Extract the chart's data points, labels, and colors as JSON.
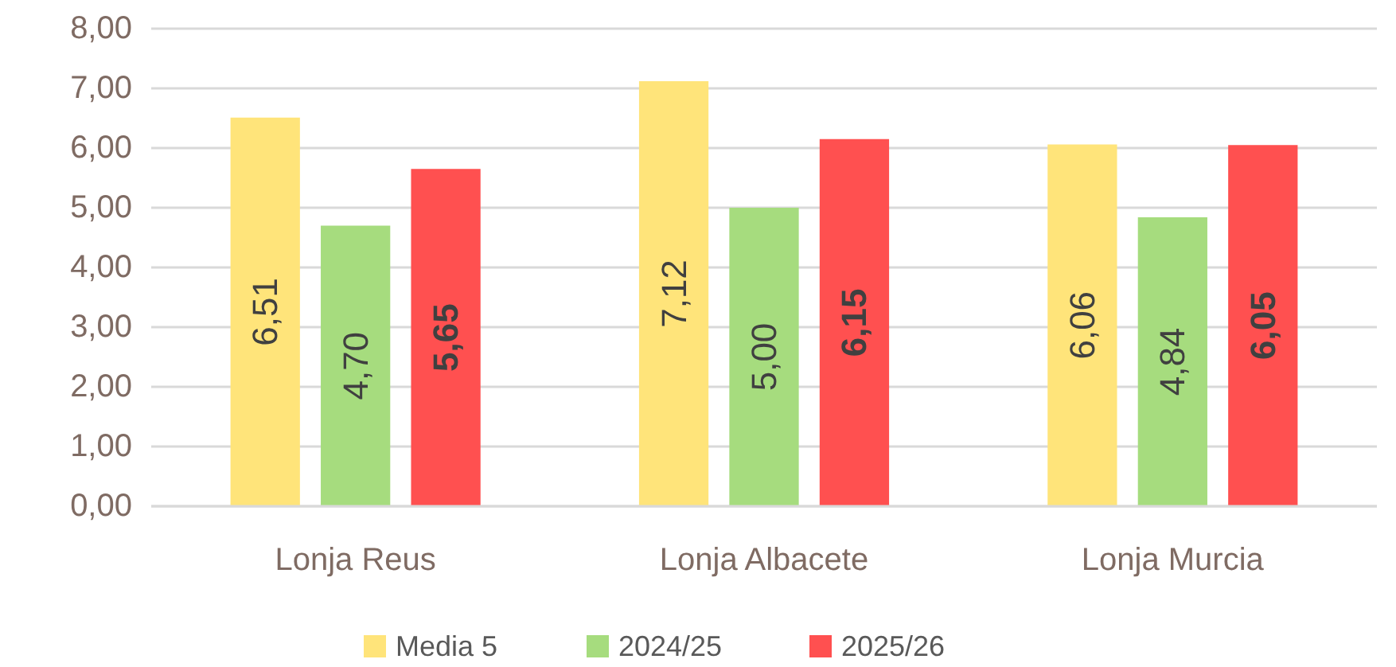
{
  "chart_data": {
    "type": "bar",
    "categories": [
      "Lonja Reus",
      "Lonja Albacete",
      "Lonja Murcia"
    ],
    "series": [
      {
        "name": "Media 5",
        "color": "#ffe47a",
        "values": [
          6.51,
          7.12,
          6.06
        ],
        "value_labels": [
          "6,51",
          "7,12",
          "6,06"
        ]
      },
      {
        "name": "2024/25",
        "color": "#a6dc7e",
        "values": [
          4.7,
          5.0,
          4.84
        ],
        "value_labels": [
          "4,70",
          "5,00",
          "4,84"
        ]
      },
      {
        "name": "2025/26",
        "color": "#ff5050",
        "values": [
          5.65,
          6.15,
          6.05
        ],
        "value_labels": [
          "5,65",
          "6,15",
          "6,05"
        ]
      }
    ],
    "ylim": [
      0,
      8
    ],
    "yticks": [
      {
        "value": 0,
        "label": "0,00"
      },
      {
        "value": 1,
        "label": "1,00"
      },
      {
        "value": 2,
        "label": "2,00"
      },
      {
        "value": 3,
        "label": "3,00"
      },
      {
        "value": 4,
        "label": "4,00"
      },
      {
        "value": 5,
        "label": "5,00"
      },
      {
        "value": 6,
        "label": "6,00"
      },
      {
        "value": 7,
        "label": "7,00"
      },
      {
        "value": 8,
        "label": "8,00"
      }
    ],
    "grid": "y",
    "legend": "bottom"
  }
}
